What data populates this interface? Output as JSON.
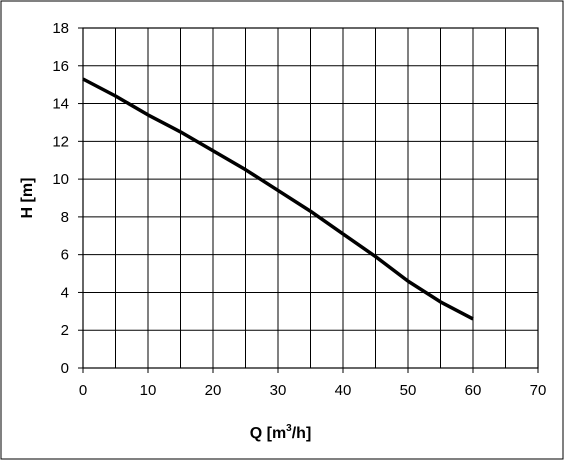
{
  "chart_data": {
    "type": "line",
    "xlabel": {
      "main": "Q [m",
      "sup": "3",
      "tail": "/h]"
    },
    "ylabel": "H [m]",
    "xlim": [
      0,
      70
    ],
    "ylim": [
      0,
      18
    ],
    "x_ticks": [
      0,
      10,
      20,
      30,
      40,
      50,
      60,
      70
    ],
    "y_ticks": [
      0,
      2,
      4,
      6,
      8,
      10,
      12,
      14,
      16,
      18
    ],
    "x_grid_step": 5,
    "y_grid_step": 2,
    "grid": true,
    "legend": "none",
    "series": [
      {
        "color": "#000000",
        "x": [
          0,
          5,
          10,
          15,
          20,
          25,
          30,
          35,
          40,
          45,
          50,
          55,
          60
        ],
        "y": [
          15.3,
          14.4,
          13.4,
          12.5,
          11.5,
          10.5,
          9.4,
          8.3,
          7.1,
          5.9,
          4.6,
          3.5,
          2.6
        ]
      }
    ]
  }
}
